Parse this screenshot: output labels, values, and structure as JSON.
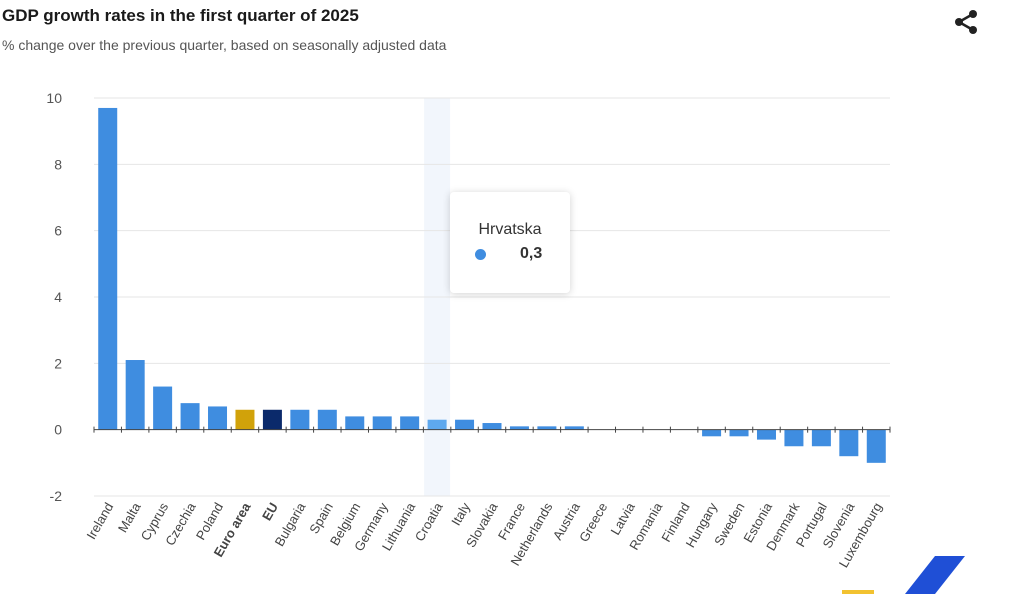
{
  "header": {
    "title": "GDP growth rates in the first quarter of 2025",
    "subtitle": "% change over the previous quarter, based on seasonally adjusted data"
  },
  "tooltip": {
    "label": "Hrvatska",
    "value": "0,3"
  },
  "colors": {
    "country": "#3f8de0",
    "highlight": "#5ea8ee",
    "euro_area": "#d1a20a",
    "eu": "#0b2a6b",
    "hover_band": "#f2f6fc"
  },
  "chart_data": {
    "type": "bar",
    "title": "GDP growth rates in the first quarter of 2025",
    "xlabel": "",
    "ylabel": "",
    "ylim": [
      -2,
      10
    ],
    "yticks": [
      -2,
      0,
      2,
      4,
      6,
      8,
      10
    ],
    "grid": true,
    "highlighted": "Croatia",
    "bold_categories": [
      "Euro area",
      "EU"
    ],
    "categories": [
      "Ireland",
      "Malta",
      "Cyprus",
      "Czechia",
      "Poland",
      "Euro area",
      "EU",
      "Bulgaria",
      "Spain",
      "Belgium",
      "Germany",
      "Lithuania",
      "Croatia",
      "Italy",
      "Slovakia",
      "France",
      "Netherlands",
      "Austria",
      "Greece",
      "Latvia",
      "Romania",
      "Finland",
      "Hungary",
      "Sweden",
      "Estonia",
      "Denmark",
      "Portugal",
      "Slovenia",
      "Luxembourg"
    ],
    "values": [
      9.7,
      2.1,
      1.3,
      0.8,
      0.7,
      0.6,
      0.6,
      0.6,
      0.6,
      0.4,
      0.4,
      0.4,
      0.3,
      0.3,
      0.2,
      0.1,
      0.1,
      0.1,
      0.0,
      0.0,
      0.0,
      0.0,
      -0.2,
      -0.2,
      -0.3,
      -0.5,
      -0.5,
      -0.8,
      -1.0
    ]
  }
}
